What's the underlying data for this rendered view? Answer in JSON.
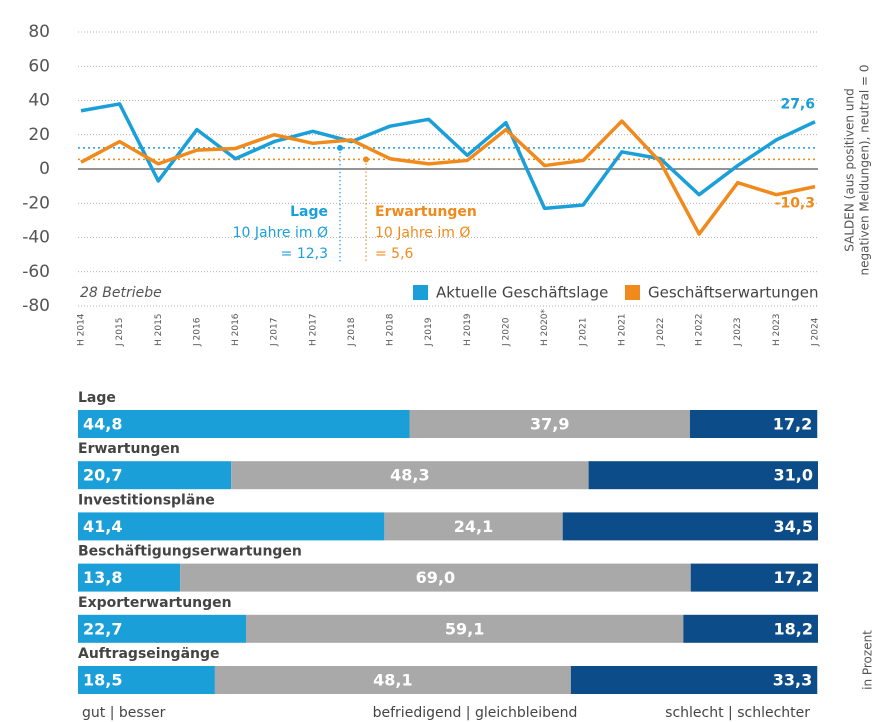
{
  "chart_data": [
    {
      "type": "line",
      "categories": [
        "H 2014",
        "J 2015",
        "H 2015",
        "J 2016",
        "H 2016",
        "J 2017",
        "H 2017",
        "J 2018",
        "H 2018",
        "J 2019",
        "H 2019",
        "J 2020",
        "H 2020*",
        "J 2021",
        "H 2021",
        "J 2022",
        "H 2022",
        "J 2023",
        "H 2023",
        "J 2024"
      ],
      "series": [
        {
          "name": "Aktuelle Geschäftslage",
          "color": "#1a9fd9",
          "values": [
            34,
            38,
            -7,
            23,
            6,
            16,
            22,
            16,
            25,
            29,
            8,
            27,
            -23,
            -21,
            10,
            6,
            -15,
            2,
            17,
            27.6
          ],
          "value_labels": [
            null,
            null,
            null,
            null,
            null,
            null,
            null,
            null,
            null,
            null,
            null,
            null,
            null,
            null,
            null,
            null,
            null,
            null,
            null,
            "27,6"
          ]
        },
        {
          "name": "Geschäftserwartungen",
          "color": "#f08a1c",
          "values": [
            4,
            16,
            3,
            11,
            12,
            20,
            15,
            17,
            6,
            3,
            5,
            23,
            2,
            5,
            28,
            4,
            -38,
            -8,
            -15,
            -10.3
          ],
          "value_labels": [
            null,
            null,
            null,
            null,
            null,
            null,
            null,
            null,
            null,
            null,
            null,
            null,
            null,
            null,
            null,
            null,
            null,
            null,
            null,
            "-10,3"
          ]
        }
      ],
      "ylim": [
        -80,
        80
      ],
      "yticks": [
        80,
        60,
        40,
        20,
        0,
        -20,
        -40,
        -60,
        -80
      ],
      "grid": true,
      "note": "28 Betriebe",
      "y2_label": [
        "SALDEN (aus positiven und",
        "negativen Meldungen), neutral = 0"
      ],
      "reference_lines": [
        {
          "series": 0,
          "value": 12.3,
          "title": "Lage",
          "text": "10 Jahre im Ø",
          "value_label": "= 12,3"
        },
        {
          "series": 1,
          "value": 5.6,
          "title": "Erwartungen",
          "text": "10 Jahre im Ø",
          "value_label": "= 5,6"
        }
      ]
    },
    {
      "type": "stacked_bar",
      "categories": [
        "Lage",
        "Erwartungen",
        "Investitionspläne",
        "Beschäftigungserwartungen",
        "Exporterwartungen",
        "Auftragseingänge"
      ],
      "series": [
        {
          "name": "gut | besser",
          "color": "#1a9fd9",
          "values": [
            44.8,
            20.7,
            41.4,
            13.8,
            22.7,
            18.5
          ],
          "value_labels": [
            "44,8",
            "20,7",
            "41,4",
            "13,8",
            "22,7",
            "18,5"
          ]
        },
        {
          "name": "befriedigend | gleichbleibend",
          "color": "#a9a9a9",
          "values": [
            37.9,
            48.3,
            24.1,
            69.0,
            59.1,
            48.1
          ],
          "value_labels": [
            "37,9",
            "48,3",
            "24,1",
            "69,0",
            "59,1",
            "48,1"
          ]
        },
        {
          "name": "schlecht | schlechter",
          "color": "#0c4c88",
          "values": [
            17.2,
            31.0,
            34.5,
            17.2,
            18.2,
            33.3
          ],
          "value_labels": [
            "17,2",
            "31,0",
            "34,5",
            "17,2",
            "18,2",
            "33,3"
          ]
        }
      ],
      "xlim": [
        0,
        100
      ],
      "unit_label": "in Prozent"
    }
  ]
}
